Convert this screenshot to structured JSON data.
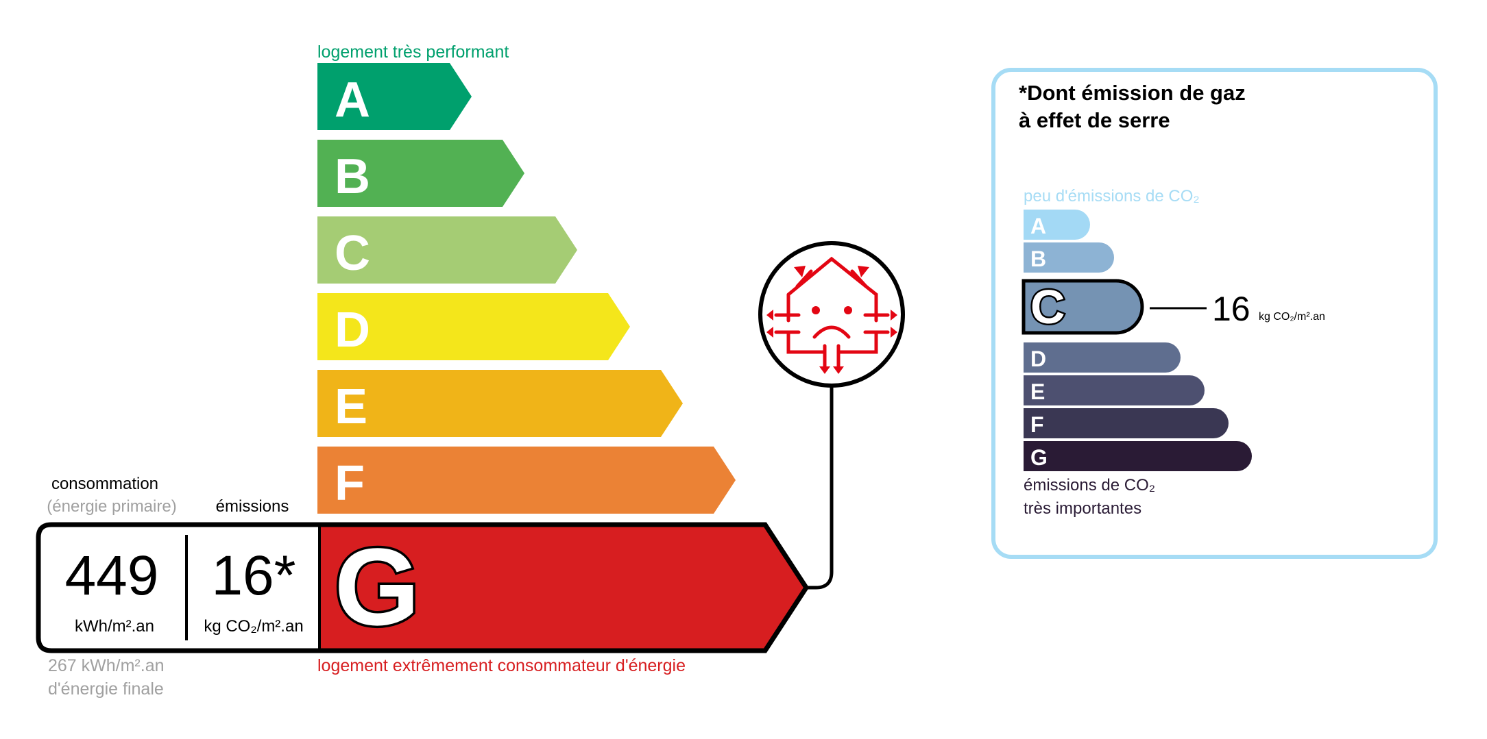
{
  "energy": {
    "top_label": "logement très performant",
    "bottom_label": "logement extrêmement consommateur d'énergie",
    "classes": [
      {
        "letter": "A",
        "color": "#00a06d"
      },
      {
        "letter": "B",
        "color": "#52b153"
      },
      {
        "letter": "C",
        "color": "#a5cc74"
      },
      {
        "letter": "D",
        "color": "#f4e61b"
      },
      {
        "letter": "E",
        "color": "#f0b418"
      },
      {
        "letter": "F",
        "color": "#eb8235"
      },
      {
        "letter": "G",
        "color": "#d71e20"
      }
    ],
    "current_class": "G",
    "consumption_label": "consommation",
    "consumption_sublabel": "(énergie primaire)",
    "emissions_label": "émissions",
    "consumption_value": "449",
    "consumption_unit": "kWh/m².an",
    "emissions_value": "16*",
    "emissions_unit": "kg CO₂/m².an",
    "final_energy_line1": "267 kWh/m².an",
    "final_energy_line2": "d'énergie finale",
    "icon": "house-heat-loss-sad-icon",
    "accent_red": "#e30613"
  },
  "ges": {
    "title_line1": "*Dont émission de gaz",
    "title_line2": "à effet de serre",
    "top_label": "peu d'émissions de CO₂",
    "bottom_line1": "émissions de CO₂",
    "bottom_line2": "très importantes",
    "classes": [
      {
        "letter": "A",
        "color": "#a3d9f5"
      },
      {
        "letter": "B",
        "color": "#8db3d4"
      },
      {
        "letter": "C",
        "color": "#7593b3"
      },
      {
        "letter": "D",
        "color": "#5f6e8f"
      },
      {
        "letter": "E",
        "color": "#4d5070"
      },
      {
        "letter": "F",
        "color": "#3a3753"
      },
      {
        "letter": "G",
        "color": "#2a1b35"
      }
    ],
    "current_class": "C",
    "value": "16",
    "unit": "kg CO₂/m².an",
    "border_color": "#a6dcf5"
  }
}
